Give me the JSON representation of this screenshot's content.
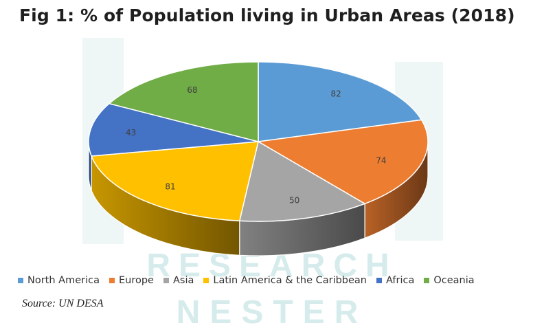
{
  "title": "Fig 1:  % of Population living in Urban Areas (2018)",
  "source": "Source: UN DESA",
  "watermark": {
    "line1": "RESEARCH",
    "line2": "NESTER",
    "color": "#d6ebeb"
  },
  "chart_data": {
    "type": "pie",
    "style": "3d-tilted",
    "title": "Fig 1:  % of Population living in Urban Areas (2018)",
    "categories": [
      "North America",
      "Europe",
      "Asia",
      "Latin America & the Caribbean",
      "Africa",
      "Oceania"
    ],
    "values": [
      82,
      74,
      50,
      81,
      43,
      68
    ],
    "data_labels": [
      "82",
      "74",
      "50",
      "81",
      "43",
      "68"
    ],
    "colors": [
      "#5b9bd5",
      "#ed7d31",
      "#a5a5a5",
      "#ffc000",
      "#4472c4",
      "#70ad47"
    ],
    "legend": "bottom",
    "source": "Source: UN DESA"
  }
}
